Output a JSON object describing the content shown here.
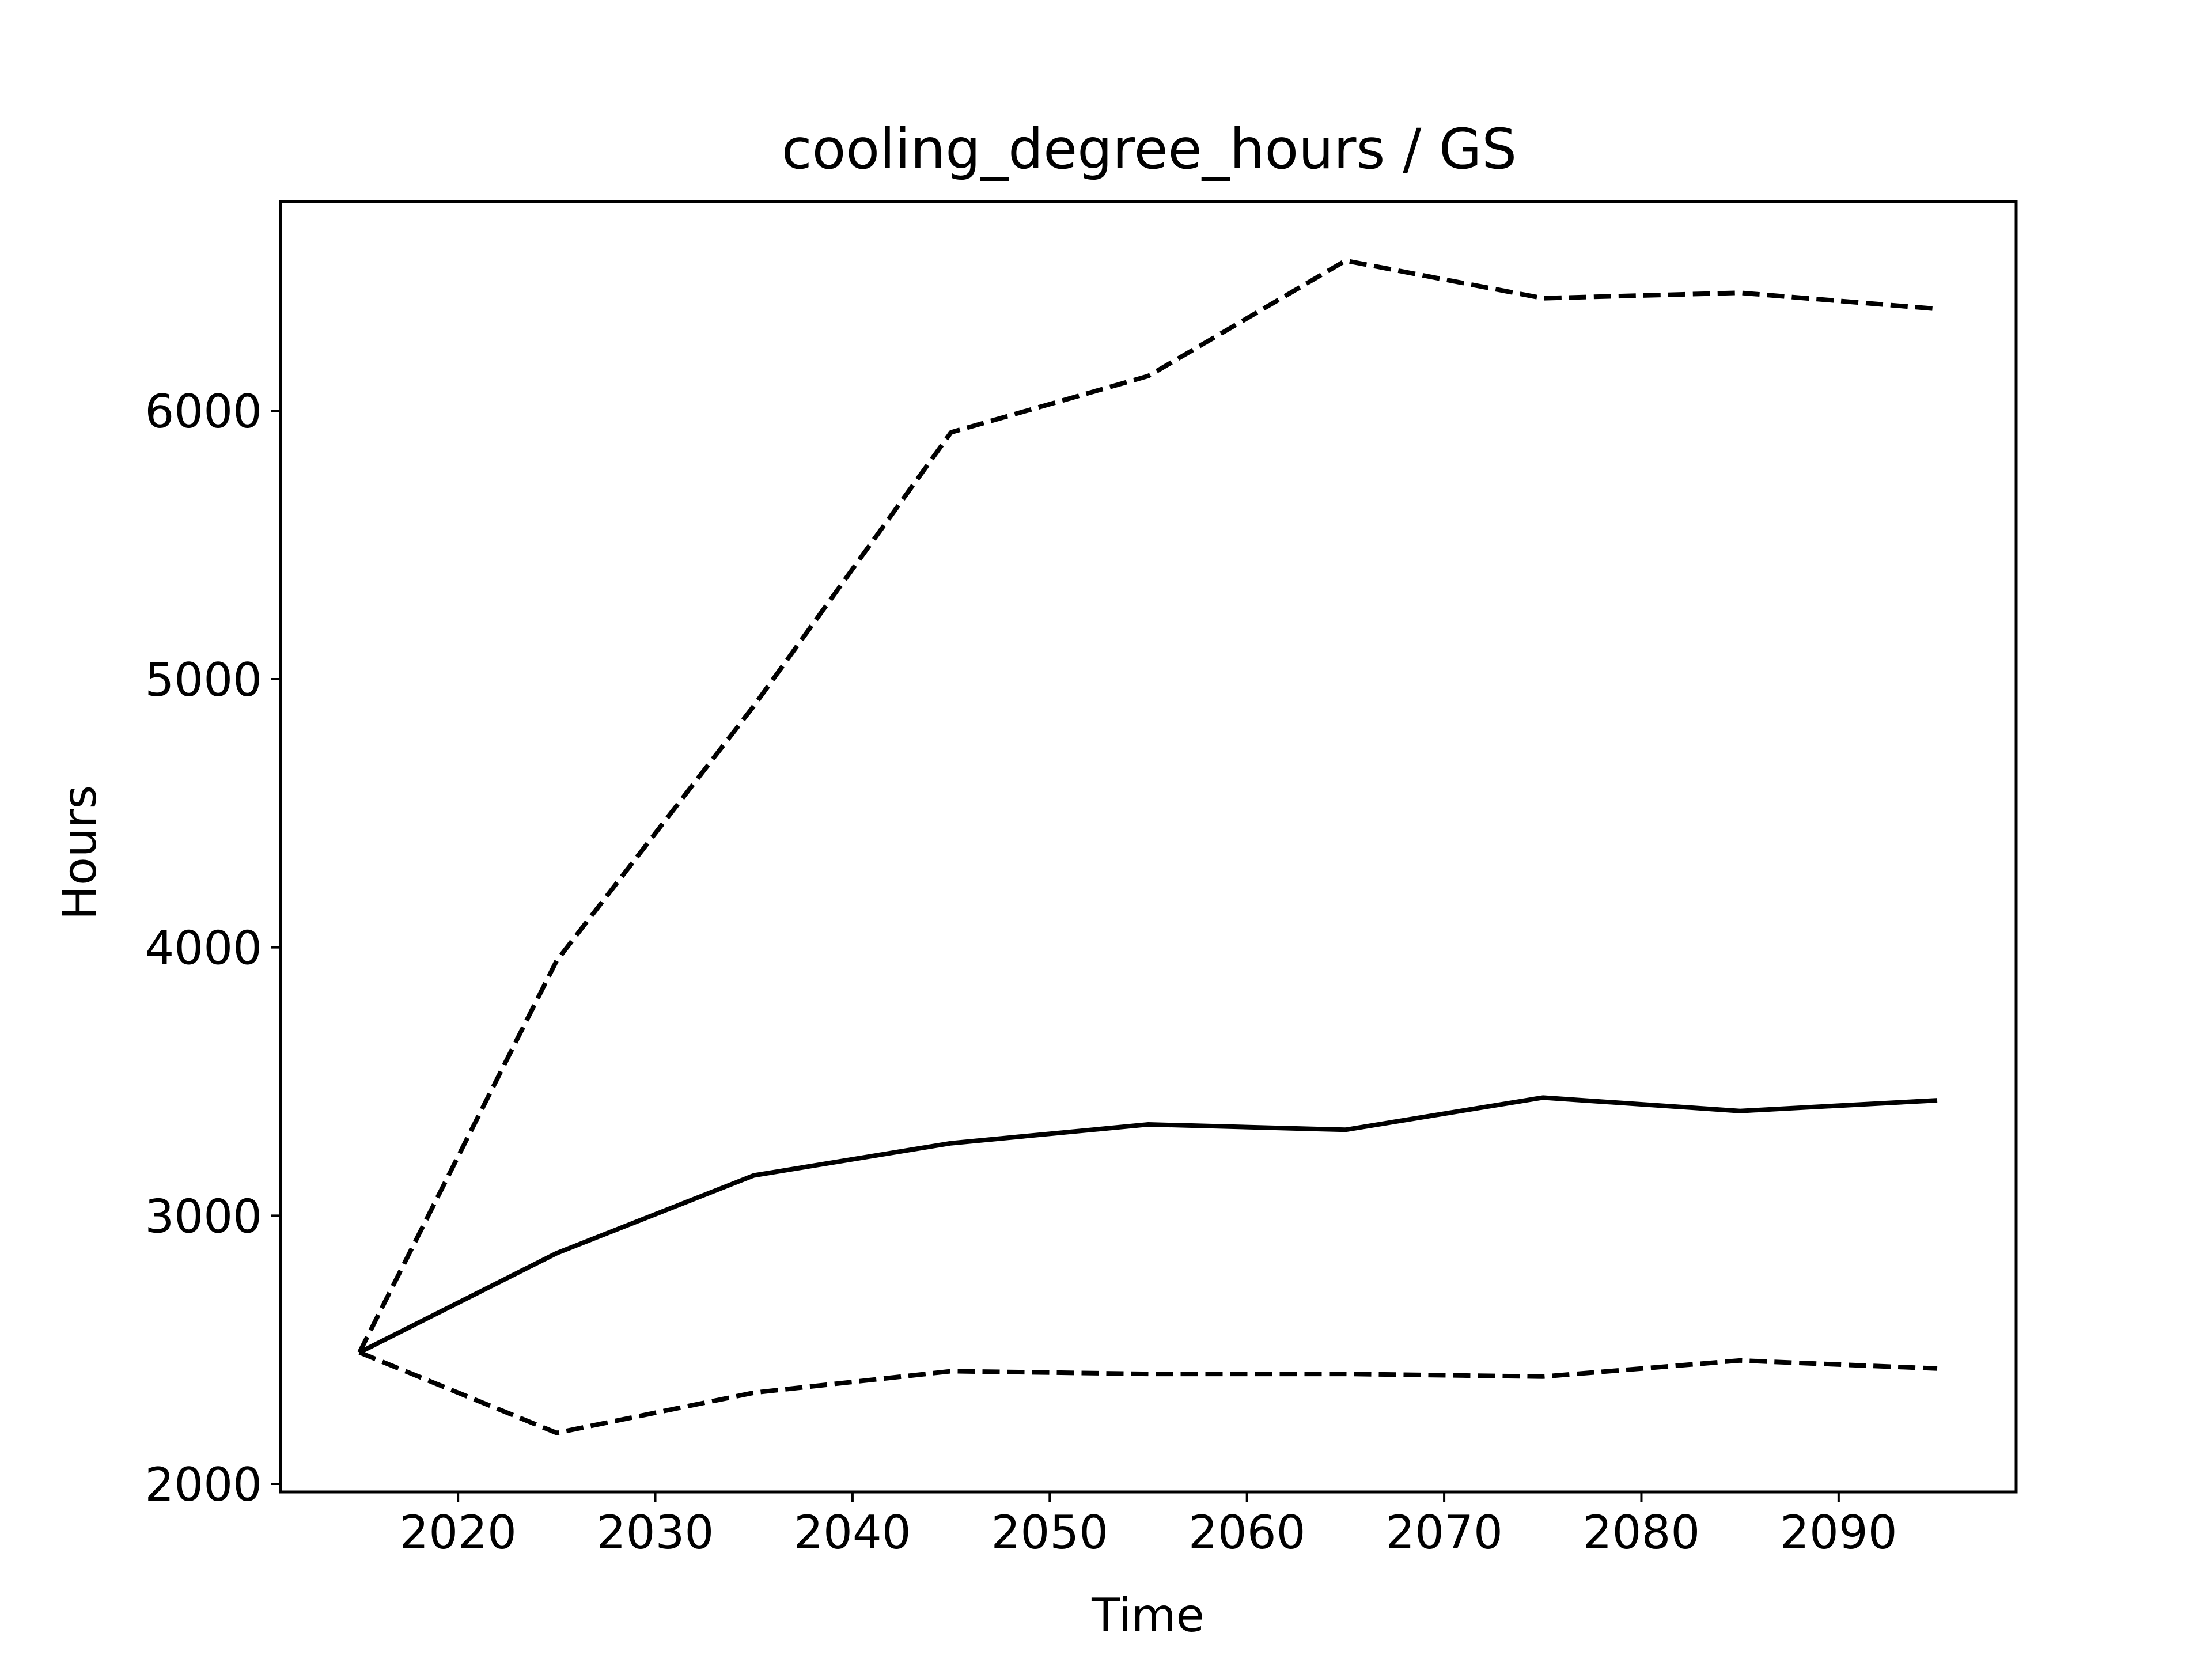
{
  "chart_data": {
    "type": "line",
    "title": "cooling_degree_hours / GS",
    "xlabel": "Time",
    "ylabel": "Hours",
    "xlim": [
      2011,
      2099
    ],
    "ylim": [
      1970,
      6780
    ],
    "xticks": [
      "2020",
      "2030",
      "2040",
      "2050",
      "2060",
      "2070",
      "2080",
      "2090"
    ],
    "yticks": [
      "2000",
      "3000",
      "4000",
      "5000",
      "6000"
    ],
    "grid": false,
    "x": [
      2015,
      2025,
      2035,
      2045,
      2055,
      2065,
      2075,
      2085,
      2095
    ],
    "series": [
      {
        "style": "dashed",
        "values": [
          2490,
          3950,
          4900,
          5920,
          6130,
          6560,
          6420,
          6440,
          6380
        ]
      },
      {
        "style": "solid",
        "values": [
          2490,
          2860,
          3150,
          3270,
          3340,
          3320,
          3440,
          3390,
          3430
        ]
      },
      {
        "style": "dashed",
        "values": [
          2490,
          2190,
          2340,
          2420,
          2410,
          2410,
          2400,
          2460,
          2430
        ]
      }
    ],
    "line_color": "#000000"
  }
}
